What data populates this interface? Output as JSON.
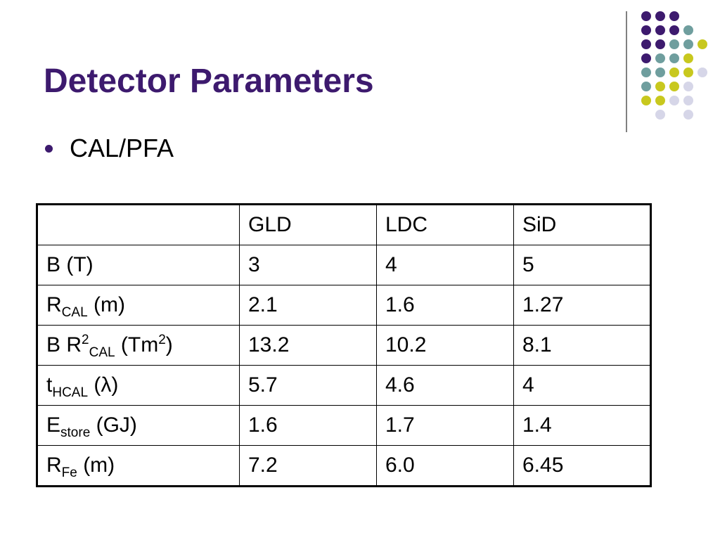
{
  "slide": {
    "title": "Detector Parameters",
    "bullet": "CAL/PFA"
  },
  "table": {
    "header": [
      "",
      "GLD",
      "LDC",
      "SiD"
    ],
    "rows": [
      {
        "label": {
          "base": "B (T)",
          "sup": "",
          "sub": "",
          "rest": "",
          "rest_sup": "",
          "rest_close": ""
        },
        "values": [
          "3",
          "4",
          "5"
        ]
      },
      {
        "label": {
          "base": "R",
          "sup": "",
          "sub": "CAL",
          "rest": " (m)",
          "rest_sup": "",
          "rest_close": ""
        },
        "values": [
          "2.1",
          "1.6",
          "1.27"
        ]
      },
      {
        "label": {
          "base": "B R",
          "sup": "2",
          "sub": "CAL",
          "rest": " (Tm",
          "rest_sup": "2",
          "rest_close": ")"
        },
        "values": [
          "13.2",
          "10.2",
          "8.1"
        ]
      },
      {
        "label": {
          "base": "t",
          "sup": "",
          "sub": "HCAL",
          "rest": " (λ)",
          "rest_sup": "",
          "rest_close": ""
        },
        "values": [
          "5.7",
          "4.6",
          "4"
        ]
      },
      {
        "label": {
          "base": "E",
          "sup": "",
          "sub": "store",
          "rest": " (GJ)",
          "rest_sup": "",
          "rest_close": ""
        },
        "values": [
          "1.6",
          "1.7",
          "1.4"
        ]
      },
      {
        "label": {
          "base": "R",
          "sup": "",
          "sub": "Fe",
          "rest": " (m)",
          "rest_sup": "",
          "rest_close": ""
        },
        "values": [
          "7.2",
          "6.0",
          "6.45"
        ]
      }
    ]
  },
  "colors": {
    "title": "#3d1a6e",
    "purple": "#3d1a6e",
    "teal": "#6f9e9e",
    "yellow": "#c8c81e",
    "lavender": "#d6d6e8"
  }
}
